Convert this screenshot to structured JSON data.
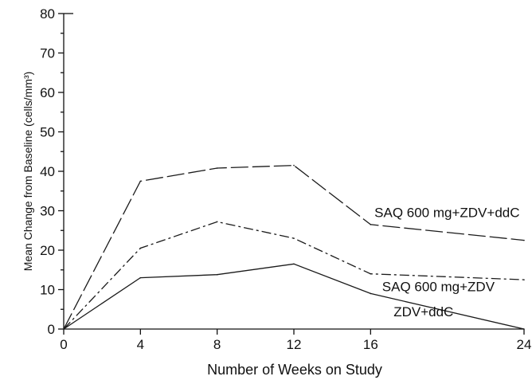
{
  "chart_data": {
    "type": "line",
    "title": "",
    "xlabel": "Number of Weeks on Study",
    "ylabel": "Mean Change from Baseline (cells/mm³)",
    "x": [
      0,
      4,
      8,
      12,
      16,
      24
    ],
    "x_ticks": [
      "0",
      "4",
      "8",
      "12",
      "16",
      "24"
    ],
    "y_ticks": [
      "0",
      "10",
      "20",
      "30",
      "40",
      "50",
      "60",
      "70",
      "80"
    ],
    "xlim": [
      0,
      24
    ],
    "ylim": [
      0,
      80
    ],
    "grid": false,
    "legend": "inline labels",
    "series": [
      {
        "name": "SAQ 600 mg+ZDV+ddC",
        "dash": "long-dash",
        "values": [
          0,
          37.5,
          40.8,
          41.5,
          26.5,
          22.5
        ]
      },
      {
        "name": "SAQ 600 mg+ZDV",
        "dash": "dash-dot",
        "values": [
          0,
          20.5,
          27.2,
          23,
          14,
          12.5
        ]
      },
      {
        "name": "ZDV+ddC",
        "dash": "solid",
        "values": [
          0,
          13,
          13.8,
          16.5,
          9,
          0
        ]
      }
    ]
  }
}
